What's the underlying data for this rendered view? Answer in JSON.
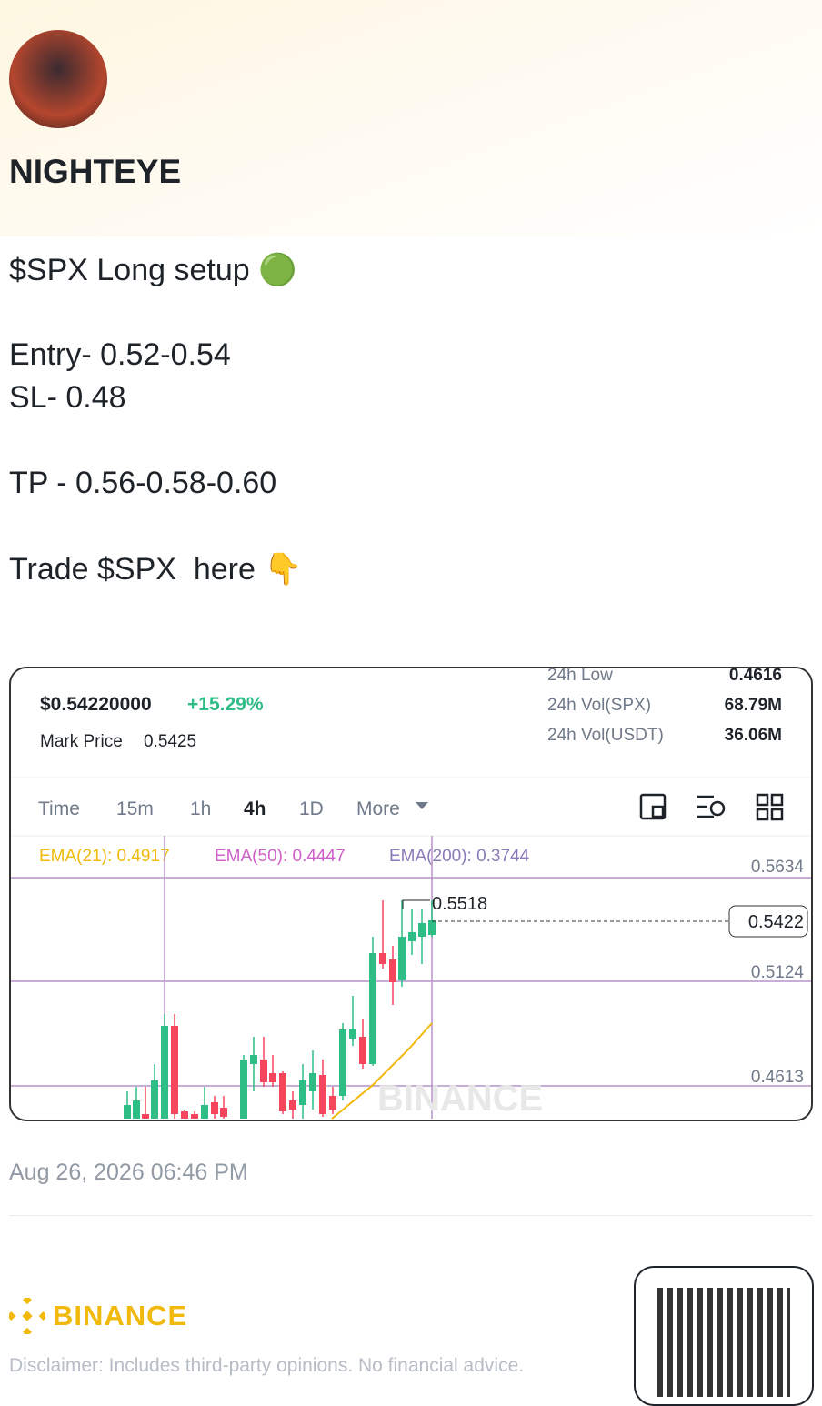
{
  "author": {
    "name": "NIGHTEYE"
  },
  "post": {
    "lines": [
      "$SPX Long setup 🟢",
      "Entry- 0.52-0.54",
      "SL- 0.48",
      "TP - 0.56-0.58-0.60",
      "Trade $SPX  here 👇"
    ]
  },
  "ticker": {
    "price": "$0.54220000",
    "change": "+15.29%",
    "mark_price_label": "Mark Price",
    "mark_price": "0.5425",
    "stats": [
      {
        "label": "24h Low",
        "value": "0.4616"
      },
      {
        "label": "24h Vol(SPX)",
        "value": "68.79M"
      },
      {
        "label": "24h Vol(USDT)",
        "value": "36.06M"
      }
    ]
  },
  "intervals": [
    "Time",
    "15m",
    "1h",
    "4h",
    "1D",
    "More"
  ],
  "indicators": [
    "EMA(21): 0.4917",
    "EMA(50): 0.4447",
    "EMA(200): 0.3744"
  ],
  "price_axis": [
    "0.5634",
    "0.5124",
    "0.4613"
  ],
  "high_label": "0.5518",
  "current_price": "0.5422",
  "chart_watermark": "BINANCE",
  "date": "Aug 26, 2026 06:46 PM",
  "footer": {
    "brand": "BINANCE",
    "disclaimer": "Disclaimer: Includes third-party opinions. No financial advice."
  }
}
